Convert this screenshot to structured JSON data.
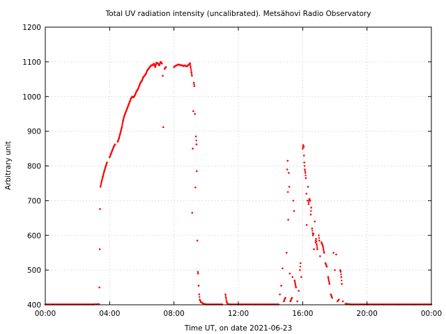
{
  "chart_data": {
    "type": "scatter",
    "title": "Total UV radiation intensity (uncalibrated). Metsähovi Radio Observatory",
    "xlabel": "Time UT, on date 2021-06-23",
    "ylabel": "Arbitrary unit",
    "xlim": [
      "00:00",
      "24:00"
    ],
    "ylim": [
      400,
      1200
    ],
    "x_ticks": [
      "00:00",
      "04:00",
      "08:00",
      "12:00",
      "16:00",
      "20:00",
      "00:00"
    ],
    "y_ticks": [
      400,
      500,
      600,
      700,
      800,
      900,
      1000,
      1100,
      1200
    ],
    "grid": true,
    "marker_color": "#ff0000",
    "series": [
      {
        "points": [
          [
            "00:00",
            401
          ],
          [
            "00:30",
            401
          ],
          [
            "01:00",
            401
          ],
          [
            "01:30",
            401
          ],
          [
            "02:00",
            401
          ],
          [
            "02:30",
            401
          ],
          [
            "03:00",
            401
          ],
          [
            "03:20",
            402
          ],
          [
            "03:22",
            450
          ],
          [
            "03:23",
            560
          ],
          [
            "03:24",
            676
          ],
          [
            "03:26",
            740
          ],
          [
            "03:30",
            755
          ],
          [
            "03:35",
            770
          ],
          [
            "03:40",
            785
          ],
          [
            "03:45",
            798
          ],
          [
            "03:50",
            810
          ],
          [
            "04:00",
            825
          ],
          [
            "04:05",
            835
          ],
          [
            "04:10",
            845
          ],
          [
            "04:15",
            855
          ],
          [
            "04:20",
            862
          ],
          [
            "04:30",
            870
          ],
          [
            "04:35",
            880
          ],
          [
            "04:40",
            895
          ],
          [
            "04:45",
            910
          ],
          [
            "04:50",
            930
          ],
          [
            "04:55",
            945
          ],
          [
            "05:00",
            955
          ],
          [
            "05:05",
            965
          ],
          [
            "05:10",
            975
          ],
          [
            "05:15",
            985
          ],
          [
            "05:20",
            995
          ],
          [
            "05:25",
            1000
          ],
          [
            "05:30",
            998
          ],
          [
            "05:35",
            1005
          ],
          [
            "05:40",
            1015
          ],
          [
            "05:45",
            1020
          ],
          [
            "05:50",
            1030
          ],
          [
            "05:55",
            1040
          ],
          [
            "06:00",
            1045
          ],
          [
            "06:05",
            1055
          ],
          [
            "06:10",
            1060
          ],
          [
            "06:15",
            1065
          ],
          [
            "06:20",
            1075
          ],
          [
            "06:25",
            1080
          ],
          [
            "06:30",
            1085
          ],
          [
            "06:35",
            1090
          ],
          [
            "06:40",
            1090
          ],
          [
            "06:45",
            1095
          ],
          [
            "06:50",
            1085
          ],
          [
            "06:55",
            1098
          ],
          [
            "07:00",
            1095
          ],
          [
            "07:05",
            1090
          ],
          [
            "07:10",
            1100
          ],
          [
            "07:15",
            1095
          ],
          [
            "07:18",
            1060
          ],
          [
            "07:20",
            912
          ],
          [
            "07:25",
            1080
          ],
          [
            "07:30",
            1085
          ],
          [
            "08:00",
            1085
          ],
          [
            "08:05",
            1088
          ],
          [
            "08:10",
            1090
          ],
          [
            "08:15",
            1092
          ],
          [
            "08:20",
            1092
          ],
          [
            "08:25",
            1090
          ],
          [
            "08:30",
            1090
          ],
          [
            "08:35",
            1088
          ],
          [
            "08:40",
            1090
          ],
          [
            "08:45",
            1087
          ],
          [
            "08:50",
            1088
          ],
          [
            "08:55",
            1092
          ],
          [
            "09:00",
            1096
          ],
          [
            "09:02",
            1085
          ],
          [
            "09:05",
            1070
          ],
          [
            "09:07",
            1060
          ],
          [
            "09:08",
            665
          ],
          [
            "09:10",
            850
          ],
          [
            "09:12",
            958
          ],
          [
            "09:14",
            1040
          ],
          [
            "09:16",
            1030
          ],
          [
            "09:18",
            950
          ],
          [
            "09:20",
            738
          ],
          [
            "09:22",
            885
          ],
          [
            "09:24",
            862
          ],
          [
            "09:25",
            785
          ],
          [
            "09:27",
            585
          ],
          [
            "09:29",
            495
          ],
          [
            "09:30",
            490
          ],
          [
            "09:32",
            455
          ],
          [
            "09:34",
            430
          ],
          [
            "09:36",
            415
          ],
          [
            "09:40",
            408
          ],
          [
            "09:50",
            403
          ],
          [
            "10:00",
            401
          ],
          [
            "10:30",
            401
          ],
          [
            "11:00",
            401
          ],
          [
            "11:12",
            430
          ],
          [
            "11:14",
            420
          ],
          [
            "11:16",
            410
          ],
          [
            "11:20",
            402
          ],
          [
            "11:30",
            401
          ],
          [
            "12:00",
            401
          ],
          [
            "13:00",
            401
          ],
          [
            "14:00",
            401
          ],
          [
            "14:30",
            401
          ],
          [
            "14:35",
            430
          ],
          [
            "14:40",
            455
          ],
          [
            "14:45",
            505
          ],
          [
            "14:50",
            410
          ],
          [
            "14:55",
            420
          ],
          [
            "15:00",
            550
          ],
          [
            "15:02",
            790
          ],
          [
            "15:04",
            815
          ],
          [
            "15:05",
            725
          ],
          [
            "15:06",
            645
          ],
          [
            "15:08",
            780
          ],
          [
            "15:10",
            740
          ],
          [
            "15:12",
            490
          ],
          [
            "15:14",
            410
          ],
          [
            "15:20",
            420
          ],
          [
            "15:22",
            480
          ],
          [
            "15:25",
            700
          ],
          [
            "15:28",
            670
          ],
          [
            "15:30",
            470
          ],
          [
            "15:35",
            450
          ],
          [
            "15:40",
            410
          ],
          [
            "15:45",
            440
          ],
          [
            "15:50",
            500
          ],
          [
            "15:52",
            520
          ],
          [
            "15:55",
            480
          ],
          [
            "16:00",
            850
          ],
          [
            "16:02",
            860
          ],
          [
            "16:04",
            855
          ],
          [
            "16:05",
            830
          ],
          [
            "16:06",
            810
          ],
          [
            "16:08",
            790
          ],
          [
            "16:10",
            780
          ],
          [
            "16:12",
            765
          ],
          [
            "16:14",
            720
          ],
          [
            "16:15",
            630
          ],
          [
            "16:18",
            700
          ],
          [
            "16:20",
            740
          ],
          [
            "16:22",
            690
          ],
          [
            "16:25",
            705
          ],
          [
            "16:28",
            700
          ],
          [
            "16:30",
            660
          ],
          [
            "16:32",
            680
          ],
          [
            "16:35",
            620
          ],
          [
            "16:38",
            600
          ],
          [
            "16:40",
            605
          ],
          [
            "16:42",
            560
          ],
          [
            "16:45",
            640
          ],
          [
            "16:48",
            580
          ],
          [
            "16:50",
            590
          ],
          [
            "16:52",
            575
          ],
          [
            "16:55",
            560
          ],
          [
            "17:00",
            600
          ],
          [
            "17:02",
            585
          ],
          [
            "17:05",
            540
          ],
          [
            "17:10",
            580
          ],
          [
            "17:15",
            570
          ],
          [
            "17:20",
            550
          ],
          [
            "17:25",
            520
          ],
          [
            "17:30",
            510
          ],
          [
            "17:35",
            480
          ],
          [
            "17:40",
            460
          ],
          [
            "17:45",
            430
          ],
          [
            "17:50",
            420
          ],
          [
            "17:55",
            550
          ],
          [
            "18:00",
            500
          ],
          [
            "18:05",
            545
          ],
          [
            "18:10",
            410
          ],
          [
            "18:15",
            415
          ],
          [
            "18:20",
            500
          ],
          [
            "18:22",
            495
          ],
          [
            "18:24",
            480
          ],
          [
            "18:26",
            460
          ],
          [
            "18:30",
            410
          ],
          [
            "18:40",
            403
          ],
          [
            "19:00",
            401
          ],
          [
            "20:00",
            401
          ],
          [
            "21:00",
            401
          ],
          [
            "22:00",
            401
          ],
          [
            "23:00",
            401
          ],
          [
            "24:00",
            401
          ]
        ]
      }
    ]
  }
}
